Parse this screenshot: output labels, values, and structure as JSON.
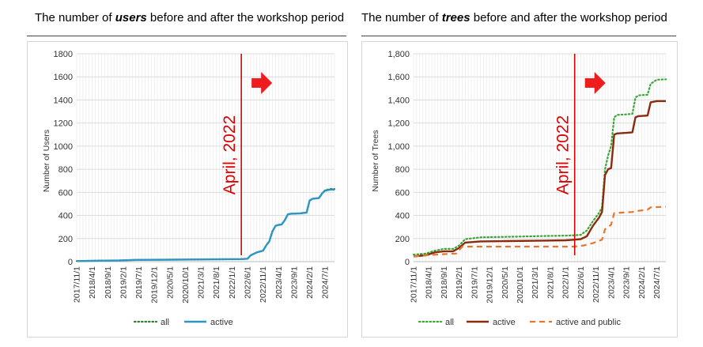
{
  "chart_data": [
    {
      "type": "line",
      "title_parts": [
        "The number of ",
        "users",
        " before and after the workshop period"
      ],
      "xlabel": "",
      "ylabel": "Number of Users",
      "ylim": [
        0,
        1800
      ],
      "yticks": [
        "0",
        "200",
        "400",
        "600",
        "800",
        "1000",
        "1200",
        "1400",
        "1600",
        "1800"
      ],
      "xticks": [
        "2017/11/1",
        "2018/4/1",
        "2018/9/1",
        "2019/2/1",
        "2019/7/1",
        "2019/12/1",
        "2020/5/1",
        "2020/10/1",
        "2021/3/1",
        "2021/8/1",
        "2022/1/1",
        "2022/6/1",
        "2022/11/1",
        "2023/4/1",
        "2023/9/1",
        "2024/2/1",
        "2024/7/1"
      ],
      "x_range": [
        "2017/11/1",
        "2024/10/1"
      ],
      "grid": true,
      "legend_position": "bottom",
      "annotation": {
        "text": "April, 2022",
        "x": "2022/4/1",
        "color": "#dd0000"
      },
      "series": [
        {
          "name": "all",
          "color": "#2e7d32",
          "style": "dotted",
          "points": [
            [
              "2017/11/1",
              5
            ],
            [
              "2018/6/1",
              8
            ],
            [
              "2019/1/1",
              10
            ],
            [
              "2019/6/1",
              15
            ],
            [
              "2020/6/1",
              17
            ],
            [
              "2021/6/1",
              20
            ],
            [
              "2022/4/1",
              22
            ],
            [
              "2022/6/1",
              25
            ],
            [
              "2022/7/1",
              55
            ],
            [
              "2022/9/1",
              80
            ],
            [
              "2022/11/1",
              95
            ],
            [
              "2022/12/1",
              140
            ],
            [
              "2023/1/1",
              175
            ],
            [
              "2023/2/1",
              260
            ],
            [
              "2023/3/1",
              310
            ],
            [
              "2023/4/1",
              318
            ],
            [
              "2023/5/1",
              322
            ],
            [
              "2023/6/1",
              360
            ],
            [
              "2023/7/1",
              410
            ],
            [
              "2023/8/1",
              415
            ],
            [
              "2023/11/1",
              418
            ],
            [
              "2024/1/1",
              425
            ],
            [
              "2024/2/1",
              530
            ],
            [
              "2024/3/1",
              545
            ],
            [
              "2024/5/1",
              550
            ],
            [
              "2024/6/1",
              590
            ],
            [
              "2024/7/1",
              620
            ],
            [
              "2024/9/1",
              630
            ],
            [
              "2024/10/1",
              628
            ]
          ]
        },
        {
          "name": "active",
          "color": "#2e95c5",
          "style": "solid",
          "points": [
            [
              "2017/11/1",
              5
            ],
            [
              "2018/6/1",
              8
            ],
            [
              "2019/1/1",
              10
            ],
            [
              "2019/6/1",
              15
            ],
            [
              "2020/6/1",
              17
            ],
            [
              "2021/6/1",
              20
            ],
            [
              "2022/4/1",
              22
            ],
            [
              "2022/6/1",
              25
            ],
            [
              "2022/7/1",
              55
            ],
            [
              "2022/9/1",
              80
            ],
            [
              "2022/11/1",
              95
            ],
            [
              "2022/12/1",
              140
            ],
            [
              "2023/1/1",
              175
            ],
            [
              "2023/2/1",
              260
            ],
            [
              "2023/3/1",
              310
            ],
            [
              "2023/4/1",
              318
            ],
            [
              "2023/5/1",
              322
            ],
            [
              "2023/6/1",
              360
            ],
            [
              "2023/7/1",
              410
            ],
            [
              "2023/8/1",
              415
            ],
            [
              "2023/11/1",
              418
            ],
            [
              "2024/1/1",
              425
            ],
            [
              "2024/2/1",
              530
            ],
            [
              "2024/3/1",
              545
            ],
            [
              "2024/5/1",
              550
            ],
            [
              "2024/6/1",
              590
            ],
            [
              "2024/7/1",
              615
            ],
            [
              "2024/9/1",
              625
            ],
            [
              "2024/10/1",
              622
            ]
          ]
        }
      ]
    },
    {
      "type": "line",
      "title_parts": [
        "The number of ",
        "trees",
        " before and after the workshop period"
      ],
      "xlabel": "",
      "ylabel": "Number of Trees",
      "ylim": [
        0,
        1800
      ],
      "yticks": [
        "0",
        "200",
        "400",
        "600",
        "800",
        "1,000",
        "1,200",
        "1,400",
        "1,600",
        "1,800"
      ],
      "xticks": [
        "2017/11/1",
        "2018/4/1",
        "2018/9/1",
        "2019/2/1",
        "2019/7/1",
        "2019/12/1",
        "2020/5/1",
        "2020/10/1",
        "2021/3/1",
        "2021/8/1",
        "2022/1/1",
        "2022/6/1",
        "2022/11/1",
        "2023/4/1",
        "2023/9/1",
        "2024/2/1",
        "2024/7/1"
      ],
      "x_range": [
        "2017/11/1",
        "2024/10/1"
      ],
      "grid": true,
      "legend_position": "bottom",
      "annotation": {
        "text": "April, 2022",
        "x": "2022/4/1",
        "color": "#dd0000"
      },
      "series": [
        {
          "name": "all",
          "color": "#3aa535",
          "style": "dotted",
          "points": [
            [
              "2017/11/1",
              60
            ],
            [
              "2018/3/1",
              70
            ],
            [
              "2018/6/1",
              95
            ],
            [
              "2018/9/1",
              110
            ],
            [
              "2018/12/1",
              110
            ],
            [
              "2019/2/1",
              140
            ],
            [
              "2019/4/1",
              195
            ],
            [
              "2019/9/1",
              210
            ],
            [
              "2020/6/1",
              215
            ],
            [
              "2021/6/1",
              222
            ],
            [
              "2022/1/1",
              225
            ],
            [
              "2022/4/1",
              228
            ],
            [
              "2022/6/1",
              232
            ],
            [
              "2022/8/1",
              270
            ],
            [
              "2022/10/1",
              350
            ],
            [
              "2022/12/1",
              420
            ],
            [
              "2023/1/1",
              470
            ],
            [
              "2023/2/1",
              800
            ],
            [
              "2023/3/1",
              920
            ],
            [
              "2023/4/1",
              1000
            ],
            [
              "2023/5/1",
              1250
            ],
            [
              "2023/6/1",
              1270
            ],
            [
              "2023/9/1",
              1275
            ],
            [
              "2023/11/1",
              1280
            ],
            [
              "2023/12/1",
              1420
            ],
            [
              "2024/1/1",
              1440
            ],
            [
              "2024/4/1",
              1445
            ],
            [
              "2024/5/1",
              1540
            ],
            [
              "2024/7/1",
              1575
            ],
            [
              "2024/10/1",
              1578
            ]
          ]
        },
        {
          "name": "active",
          "color": "#8b2b0e",
          "style": "solid",
          "points": [
            [
              "2017/11/1",
              45
            ],
            [
              "2018/3/1",
              55
            ],
            [
              "2018/6/1",
              80
            ],
            [
              "2018/9/1",
              90
            ],
            [
              "2018/12/1",
              90
            ],
            [
              "2019/2/1",
              120
            ],
            [
              "2019/4/1",
              165
            ],
            [
              "2019/9/1",
              175
            ],
            [
              "2020/6/1",
              178
            ],
            [
              "2021/6/1",
              182
            ],
            [
              "2022/1/1",
              185
            ],
            [
              "2022/4/1",
              190
            ],
            [
              "2022/6/1",
              195
            ],
            [
              "2022/8/1",
              220
            ],
            [
              "2022/10/1",
              310
            ],
            [
              "2022/12/1",
              380
            ],
            [
              "2023/1/1",
              430
            ],
            [
              "2023/2/1",
              750
            ],
            [
              "2023/3/1",
              800
            ],
            [
              "2023/4/1",
              810
            ],
            [
              "2023/5/1",
              1100
            ],
            [
              "2023/6/1",
              1110
            ],
            [
              "2023/9/1",
              1115
            ],
            [
              "2023/11/1",
              1120
            ],
            [
              "2023/12/1",
              1250
            ],
            [
              "2024/1/1",
              1260
            ],
            [
              "2024/4/1",
              1265
            ],
            [
              "2024/5/1",
              1380
            ],
            [
              "2024/7/1",
              1390
            ],
            [
              "2024/10/1",
              1390
            ]
          ]
        },
        {
          "name": "active and public",
          "color": "#e8742c",
          "style": "dashed",
          "points": [
            [
              "2017/11/1",
              45
            ],
            [
              "2018/3/1",
              55
            ],
            [
              "2018/9/1",
              65
            ],
            [
              "2019/1/1",
              70
            ],
            [
              "2019/3/1",
              130
            ],
            [
              "2020/6/1",
              130
            ],
            [
              "2021/6/1",
              130
            ],
            [
              "2022/4/1",
              130
            ],
            [
              "2022/7/1",
              140
            ],
            [
              "2022/10/1",
              160
            ],
            [
              "2023/1/1",
              190
            ],
            [
              "2023/2/1",
              280
            ],
            [
              "2023/4/1",
              320
            ],
            [
              "2023/5/1",
              420
            ],
            [
              "2023/8/1",
              425
            ],
            [
              "2023/11/1",
              430
            ],
            [
              "2024/1/1",
              440
            ],
            [
              "2024/4/1",
              450
            ],
            [
              "2024/5/1",
              470
            ],
            [
              "2024/10/1",
              475
            ]
          ]
        }
      ]
    }
  ]
}
